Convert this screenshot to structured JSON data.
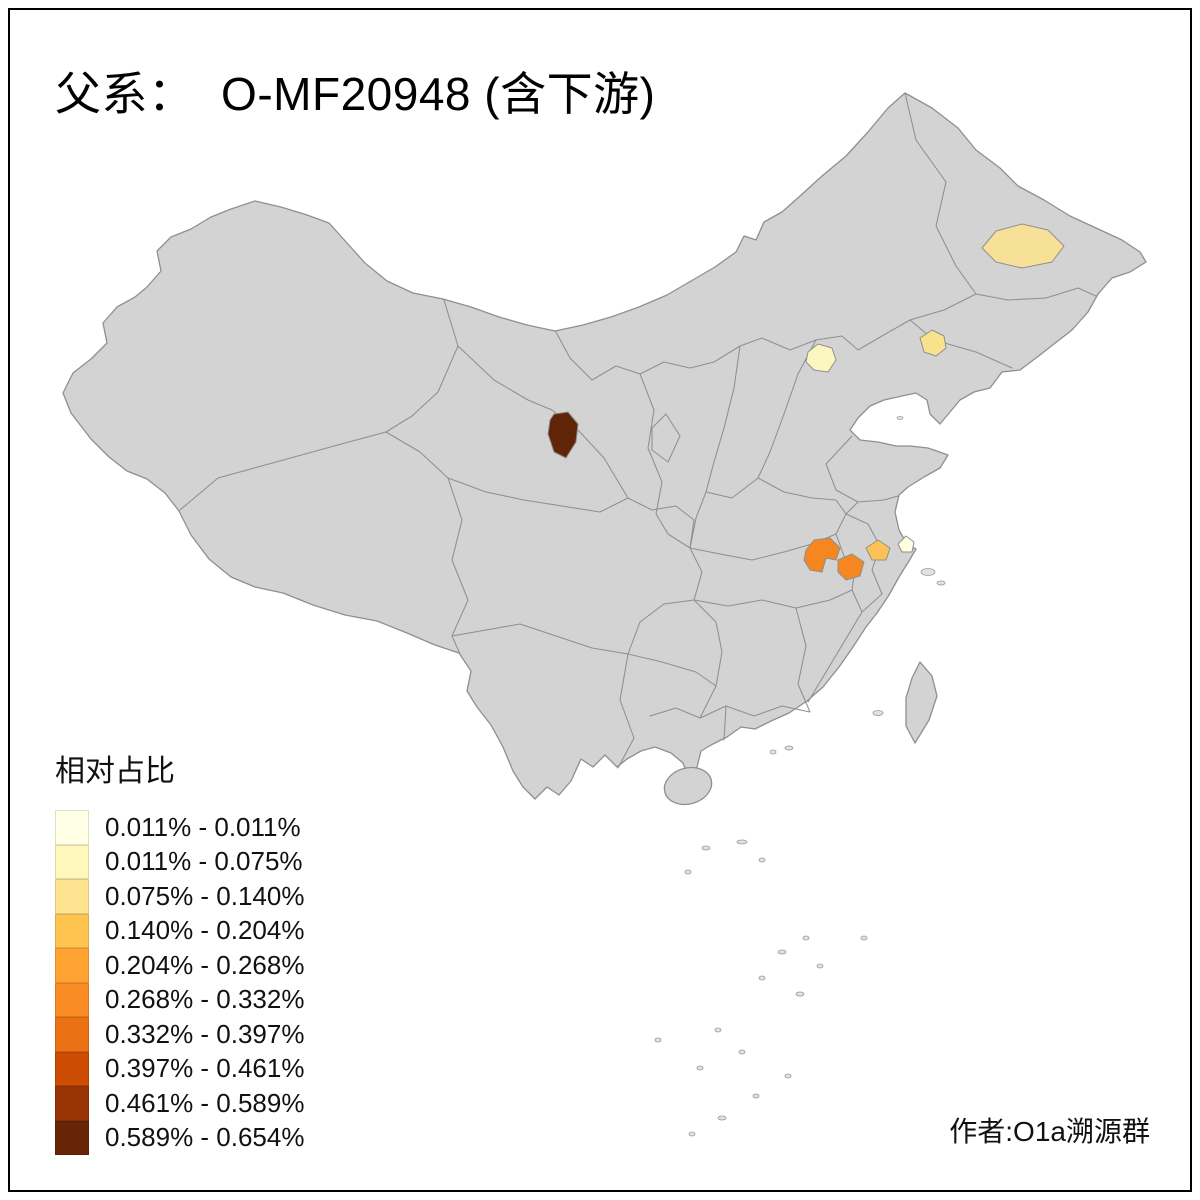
{
  "title": "父系：  O-MF20948 (含下游)",
  "credit": "作者:O1a溯源群",
  "legend": {
    "title": "相对占比",
    "items": [
      {
        "label": "0.011% - 0.011%",
        "color": "#FFFFE5"
      },
      {
        "label": "0.011% - 0.075%",
        "color": "#FFF7BC"
      },
      {
        "label": "0.075% - 0.140%",
        "color": "#FEE391"
      },
      {
        "label": "0.140% - 0.204%",
        "color": "#FEC44F"
      },
      {
        "label": "0.204% - 0.268%",
        "color": "#FEA332"
      },
      {
        "label": "0.268% - 0.332%",
        "color": "#FB8B24"
      },
      {
        "label": "0.332% - 0.397%",
        "color": "#EC7014"
      },
      {
        "label": "0.397% - 0.461%",
        "color": "#CC4C02"
      },
      {
        "label": "0.461% - 0.589%",
        "color": "#993404"
      },
      {
        "label": "0.589% - 0.654%",
        "color": "#662506"
      }
    ]
  },
  "map": {
    "base_fill": "#D3D3D3",
    "border_color": "#8F8F8F",
    "highlights": [
      {
        "id": "heilongjiang",
        "color": "#F7E199"
      },
      {
        "id": "liaoning",
        "color": "#F9E28C"
      },
      {
        "id": "beijing",
        "color": "#FCF6C0"
      },
      {
        "id": "qinghai",
        "color": "#602408"
      },
      {
        "id": "hubei-west",
        "color": "#F6861F"
      },
      {
        "id": "hubei-east",
        "color": "#F6861F"
      },
      {
        "id": "anhui",
        "color": "#FCC257"
      },
      {
        "id": "shanghai",
        "color": "#FFFEE3"
      }
    ]
  }
}
